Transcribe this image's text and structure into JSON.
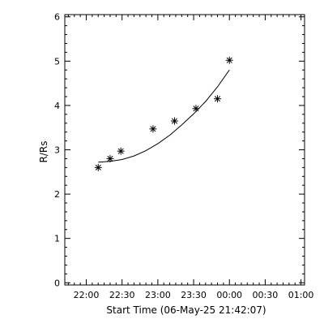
{
  "chart_data": {
    "type": "scatter",
    "title": "",
    "xlabel": "Start Time (06-May-25 21:42:07)",
    "ylabel": "R/Rs",
    "x_tick_labels": [
      "22:00",
      "22:30",
      "23:00",
      "23:30",
      "00:00",
      "00:30",
      "01:00"
    ],
    "x_tick_hours": [
      22.0,
      22.5,
      23.0,
      23.5,
      24.0,
      24.5,
      25.0
    ],
    "x_range_hours": [
      21.7,
      25.05
    ],
    "y_tick_labels": [
      "0",
      "1",
      "2",
      "3",
      "4",
      "5",
      "6"
    ],
    "y_tick_values": [
      0,
      1,
      2,
      3,
      4,
      5,
      6
    ],
    "ylim": [
      -0.05,
      6.05
    ],
    "grid": false,
    "series": [
      {
        "type": "scatter",
        "marker": "asterisk",
        "x_hours": [
          22.167,
          22.333,
          22.483,
          22.933,
          23.233,
          23.533,
          23.833,
          24.0
        ],
        "times": [
          "22:10",
          "22:20",
          "22:29",
          "22:56",
          "23:14",
          "23:32",
          "23:50",
          "00:00"
        ],
        "y": [
          2.6,
          2.8,
          2.97,
          3.47,
          3.65,
          3.93,
          4.15,
          5.02
        ]
      },
      {
        "type": "line",
        "x_hours": [
          22.167,
          22.333,
          22.5,
          22.667,
          22.833,
          23.0,
          23.167,
          23.333,
          23.5,
          23.667,
          23.833,
          24.0
        ],
        "y": [
          2.72,
          2.74,
          2.78,
          2.86,
          2.98,
          3.14,
          3.33,
          3.56,
          3.81,
          4.09,
          4.42,
          4.8
        ]
      }
    ]
  }
}
